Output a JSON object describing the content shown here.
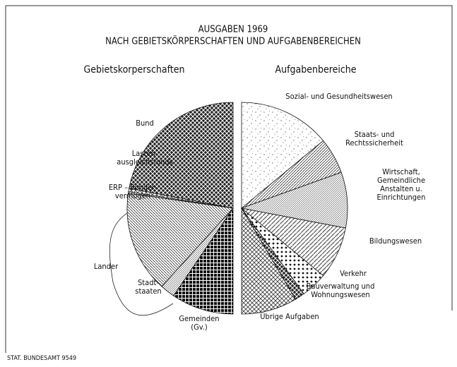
{
  "title": [
    "AUSGABEN 1969",
    "NACH GEBIETSKÖRPERSCHAFTEN UND AUFGABENBEREICHEN"
  ],
  "source": "STAT. BUNDESAMT 9549",
  "chart_data": [
    {
      "type": "pie",
      "title": "Gebietskorperschaften",
      "categories": [
        "Bund",
        "Lasten-\nausgleichsfonds",
        "ERP – Sonder-\nvermogen",
        "Lander",
        "Stadt-\nstaaten",
        "Gemeinden\n(Gv.)"
      ],
      "values": [
        44,
        1,
        0.5,
        31,
        4.5,
        19
      ]
    },
    {
      "type": "pie",
      "title": "Aufgabenbereiche",
      "categories": [
        "Sozial- und Gesundheitswesen",
        "Staats- und Rechtssicherheit",
        "Wirtschaft, Gemeindliche\nAnstalten u. Einrichtungen",
        "Bildungswesen",
        "Verkehr",
        "Bauverwaltung und\nWohnungswesen",
        "Übrige Aufgaben"
      ],
      "values": [
        28,
        11,
        17,
        16,
        8,
        3,
        17
      ]
    }
  ]
}
